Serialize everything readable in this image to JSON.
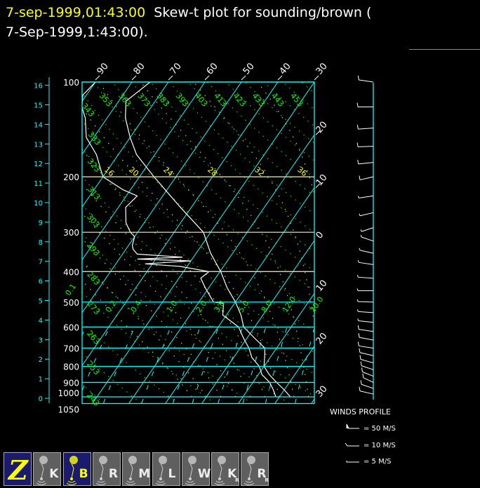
{
  "title": {
    "date": "7-sep-1999,01:43:00",
    "text": "  Skew-t plot for sounding/brown (",
    "line2": "7-Sep-1999,1:43:00)."
  },
  "chart_data": {
    "type": "skew-t",
    "pressure_axis": {
      "ticks": [
        100,
        200,
        300,
        400,
        500,
        600,
        700,
        800,
        900,
        1000,
        1050
      ],
      "range": [
        100,
        1050
      ],
      "scale": "log"
    },
    "height_axis_km": {
      "ticks": [
        0,
        1,
        2,
        3,
        4,
        5,
        6,
        7,
        8,
        9,
        10,
        11,
        12,
        13,
        14,
        15,
        16
      ]
    },
    "isotherm_labels_top": [
      "-90",
      "-80",
      "-70",
      "-60",
      "-50",
      "-40",
      "-30"
    ],
    "isotherm_labels_right": [
      "-20",
      "-10",
      "0",
      "10",
      "20",
      "30"
    ],
    "dry_adiabat_labels": [
      "453",
      "443",
      "433",
      "423",
      "413",
      "403",
      "393",
      "383",
      "373",
      "363",
      "353",
      "343",
      "333",
      "323",
      "313",
      "303",
      "293",
      "283",
      "273",
      "263",
      "253",
      "243"
    ],
    "moist_adiabat_labels": [
      "16",
      "20",
      "24",
      "28",
      "32",
      "36"
    ],
    "mixing_ratio_labels": [
      "0.1",
      "0.2",
      "0.4",
      "1.0",
      "2.0",
      "3.0",
      "5.0",
      "8.0",
      "12.0",
      "20.0"
    ],
    "temperature": [
      [
        1000,
        23
      ],
      [
        950,
        20
      ],
      [
        900,
        16.5
      ],
      [
        850,
        13
      ],
      [
        800,
        10
      ],
      [
        750,
        8.5
      ],
      [
        700,
        6.8
      ],
      [
        650,
        2
      ],
      [
        600,
        -3
      ],
      [
        550,
        -6
      ],
      [
        500,
        -10
      ],
      [
        450,
        -15
      ],
      [
        400,
        -19.8
      ],
      [
        350,
        -26
      ],
      [
        300,
        -32
      ],
      [
        250,
        -43
      ],
      [
        200,
        -56
      ],
      [
        170,
        -65
      ],
      [
        150,
        -70
      ],
      [
        130,
        -75
      ],
      [
        115,
        -78
      ],
      [
        100,
        -75
      ]
    ],
    "dewpoint": [
      [
        1000,
        19
      ],
      [
        950,
        17
      ],
      [
        900,
        14.6
      ],
      [
        850,
        11
      ],
      [
        800,
        8.7
      ],
      [
        750,
        5
      ],
      [
        700,
        2.4
      ],
      [
        650,
        -1
      ],
      [
        600,
        -4.4
      ],
      [
        550,
        -11
      ],
      [
        505,
        -13
      ],
      [
        500,
        -16
      ],
      [
        450,
        -21
      ],
      [
        420,
        -24
      ],
      [
        400,
        -23
      ],
      [
        385,
        -32
      ],
      [
        378,
        -42
      ],
      [
        370,
        -30
      ],
      [
        365,
        -45
      ],
      [
        360,
        -33
      ],
      [
        352,
        -46
      ],
      [
        340,
        -48
      ],
      [
        330,
        -49
      ],
      [
        310,
        -50
      ],
      [
        300,
        -52
      ],
      [
        280,
        -55
      ],
      [
        250,
        -58
      ],
      [
        230,
        -57
      ],
      [
        220,
        -62
      ],
      [
        200,
        -70
      ],
      [
        170,
        -76
      ],
      [
        150,
        -82
      ],
      [
        130,
        -86
      ],
      [
        120,
        -89
      ],
      [
        110,
        -91
      ],
      [
        100,
        -90
      ]
    ],
    "winds": [
      [
        100,
        250,
        20
      ],
      [
        120,
        270,
        10
      ],
      [
        140,
        280,
        12
      ],
      [
        160,
        275,
        10
      ],
      [
        180,
        285,
        12
      ],
      [
        200,
        300,
        10
      ],
      [
        230,
        290,
        8
      ],
      [
        260,
        300,
        8
      ],
      [
        290,
        310,
        6
      ],
      [
        320,
        230,
        6
      ],
      [
        350,
        240,
        6
      ],
      [
        380,
        250,
        6
      ],
      [
        420,
        260,
        5
      ],
      [
        460,
        270,
        5
      ],
      [
        500,
        265,
        6
      ],
      [
        540,
        260,
        6
      ],
      [
        580,
        255,
        8
      ],
      [
        620,
        250,
        10
      ],
      [
        660,
        245,
        10
      ],
      [
        700,
        250,
        10
      ],
      [
        740,
        240,
        10
      ],
      [
        780,
        235,
        10
      ],
      [
        820,
        230,
        10
      ],
      [
        860,
        225,
        10
      ],
      [
        900,
        220,
        10
      ],
      [
        940,
        230,
        10
      ],
      [
        980,
        240,
        10
      ]
    ],
    "colors": {
      "isotherm": "#00ffff",
      "dry_adiabat": "#00ff00",
      "moist_adiabat": "#ffff00",
      "mixing_ratio": "#00ffff",
      "sounding": "#ffffff"
    }
  },
  "winds_legend": {
    "title": "WINDS PROFILE",
    "items": [
      "= 50 M/S",
      "= 10 M/S",
      "= 5 M/S"
    ]
  },
  "toolbar": [
    {
      "label": "Z",
      "icon": "zoom-icon",
      "selected": true
    },
    {
      "label": "K",
      "icon": "balloon-icon",
      "selected": false
    },
    {
      "label": "B",
      "icon": "balloon-icon",
      "selected": true
    },
    {
      "label": "R",
      "icon": "balloon-icon",
      "selected": false
    },
    {
      "label": "M",
      "icon": "balloon-icon",
      "selected": false
    },
    {
      "label": "L",
      "icon": "balloon-icon",
      "selected": false
    },
    {
      "label": "W",
      "icon": "balloon-icon",
      "selected": false
    },
    {
      "label": "K",
      "sub": "R",
      "icon": "balloon-icon",
      "selected": false
    },
    {
      "label": "R",
      "sub": "R",
      "icon": "balloon-icon",
      "selected": false
    }
  ]
}
